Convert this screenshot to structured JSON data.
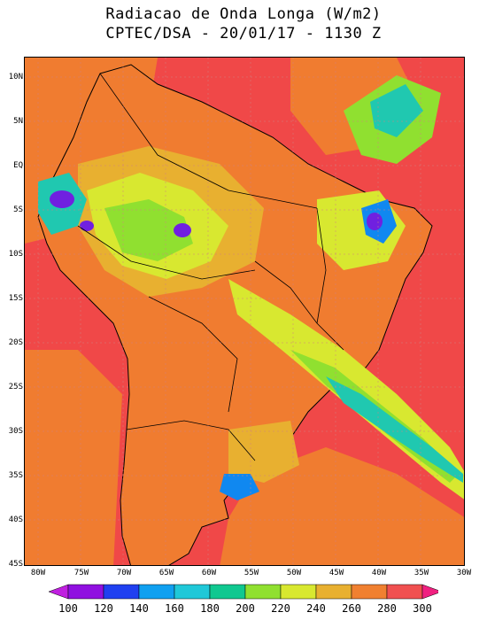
{
  "title": {
    "line1": "Radiacao de Onda Longa (W/m2)",
    "line2": "CPTEC/DSA - 20/01/17 - 1130 Z"
  },
  "axes": {
    "lat_labels": [
      "10N",
      "5N",
      "EQ",
      "5S",
      "10S",
      "15S",
      "20S",
      "25S",
      "30S",
      "35S",
      "40S",
      "45S"
    ],
    "lon_labels": [
      "80W",
      "75W",
      "70W",
      "65W",
      "60W",
      "55W",
      "50W",
      "45W",
      "40W",
      "35W",
      "30W"
    ]
  },
  "colorbar": {
    "labels": [
      "100",
      "120",
      "140",
      "160",
      "180",
      "200",
      "220",
      "240",
      "260",
      "280",
      "300"
    ],
    "colors": [
      "#9010e0",
      "#2040f0",
      "#10a0f0",
      "#20c8d8",
      "#10c890",
      "#90e030",
      "#d8e830",
      "#e8b030",
      "#f08030",
      "#f05050"
    ],
    "end_low": "#c020e0",
    "end_high": "#f02080"
  },
  "palette": {
    "ocean_hot": "#f04848",
    "land_warm": "#f07c30",
    "mid": "#e8b030",
    "yellow": "#d8e830",
    "green": "#90e030",
    "teal": "#20c8b0",
    "blue": "#1088f0",
    "purple": "#7020e0",
    "border": "#000000"
  }
}
